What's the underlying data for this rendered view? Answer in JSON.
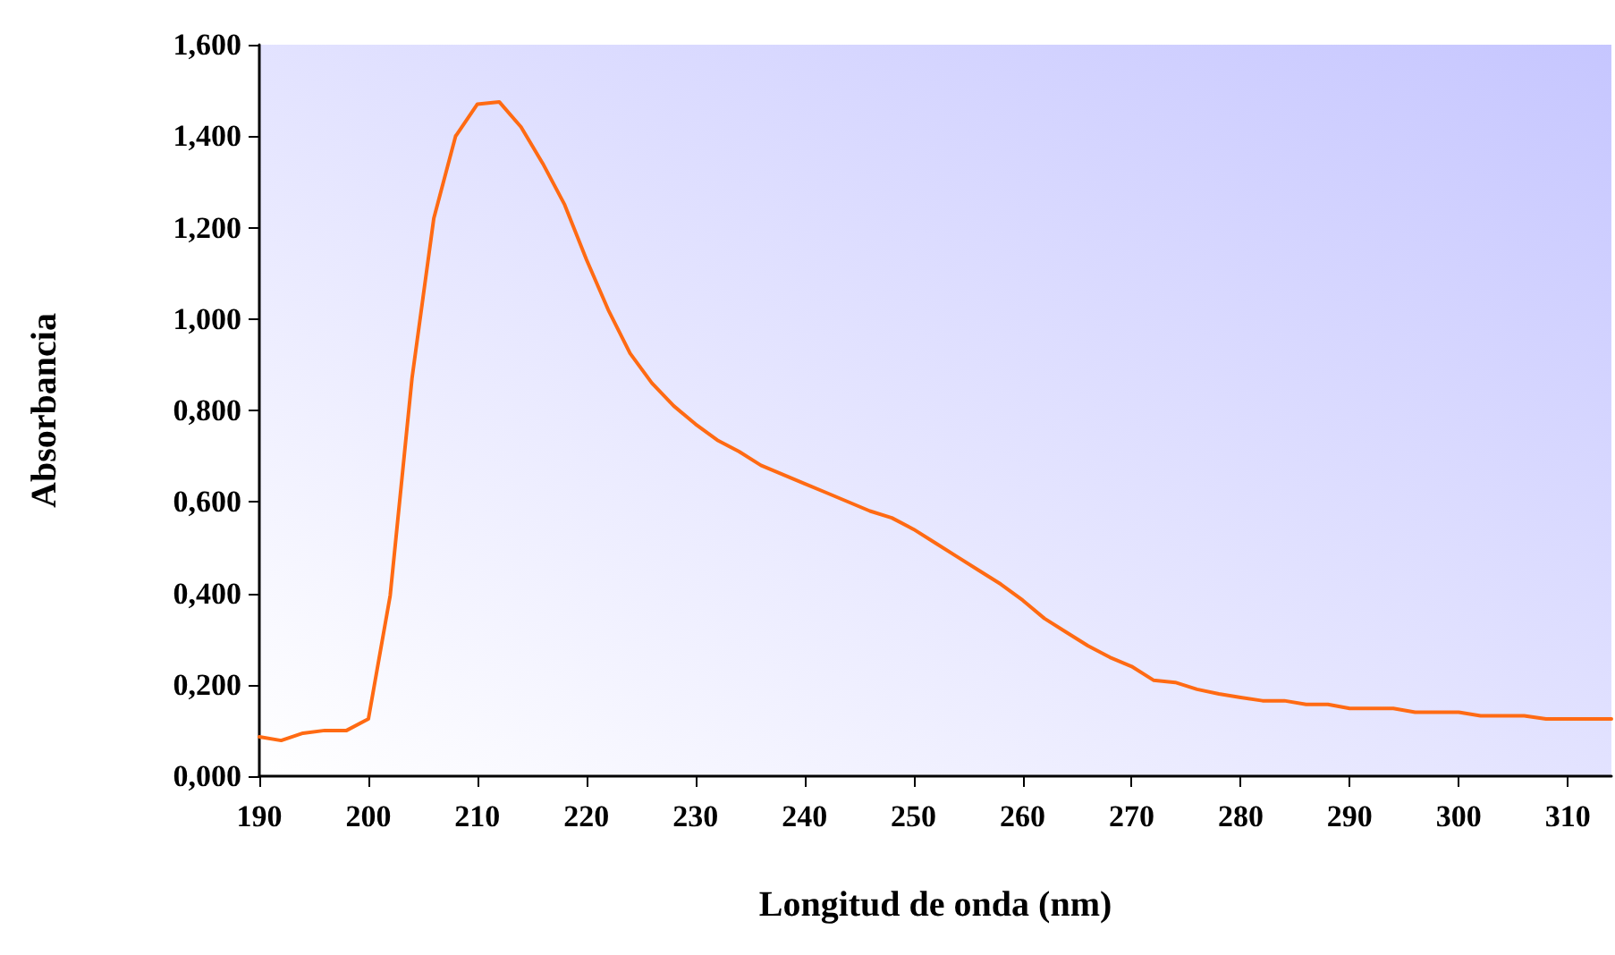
{
  "chart_data": {
    "type": "line",
    "xlabel": "Longitud de onda (nm)",
    "ylabel": "Absorbancia",
    "x": [
      190,
      192,
      194,
      196,
      198,
      200,
      202,
      204,
      206,
      208,
      210,
      212,
      214,
      216,
      218,
      220,
      222,
      224,
      226,
      228,
      230,
      232,
      234,
      236,
      238,
      240,
      242,
      244,
      246,
      248,
      250,
      252,
      254,
      256,
      258,
      260,
      262,
      264,
      266,
      268,
      270,
      272,
      274,
      276,
      278,
      280,
      282,
      284,
      286,
      288,
      290,
      292,
      294,
      296,
      298,
      300,
      302,
      304,
      306,
      308,
      310,
      312,
      314
    ],
    "series": [
      {
        "color": "#ff6a13",
        "values": [
          0.086,
          0.078,
          0.094,
          0.1,
          0.1,
          0.125,
          0.395,
          0.87,
          1.22,
          1.4,
          1.47,
          1.475,
          1.42,
          1.34,
          1.25,
          1.13,
          1.02,
          0.925,
          0.86,
          0.81,
          0.77,
          0.735,
          0.71,
          0.68,
          0.66,
          0.64,
          0.62,
          0.6,
          0.58,
          0.565,
          0.54,
          0.51,
          0.48,
          0.45,
          0.42,
          0.385,
          0.345,
          0.315,
          0.285,
          0.26,
          0.24,
          0.21,
          0.205,
          0.19,
          0.18,
          0.172,
          0.165,
          0.165,
          0.157,
          0.157,
          0.148,
          0.148,
          0.148,
          0.14,
          0.14,
          0.14,
          0.132,
          0.132,
          0.132,
          0.125,
          0.125,
          0.125,
          0.125
        ]
      }
    ],
    "xlim": [
      190,
      314
    ],
    "xticks": [
      190,
      200,
      210,
      220,
      230,
      240,
      250,
      260,
      270,
      280,
      290,
      300,
      310
    ],
    "ylim": [
      0,
      1.6
    ],
    "yticks": [
      {
        "value": 0,
        "label": "0,000"
      },
      {
        "value": 0.2,
        "label": "0,200"
      },
      {
        "value": 0.4,
        "label": "0,400"
      },
      {
        "value": 0.6,
        "label": "0,600"
      },
      {
        "value": 0.8,
        "label": "0,800"
      },
      {
        "value": 1,
        "label": "1,000"
      },
      {
        "value": 1.2,
        "label": "1,200"
      },
      {
        "value": 1.4,
        "label": "1,400"
      },
      {
        "value": 1.6,
        "label": "1,600"
      }
    ],
    "grid": false,
    "marker": "none",
    "line_style": "solid"
  }
}
